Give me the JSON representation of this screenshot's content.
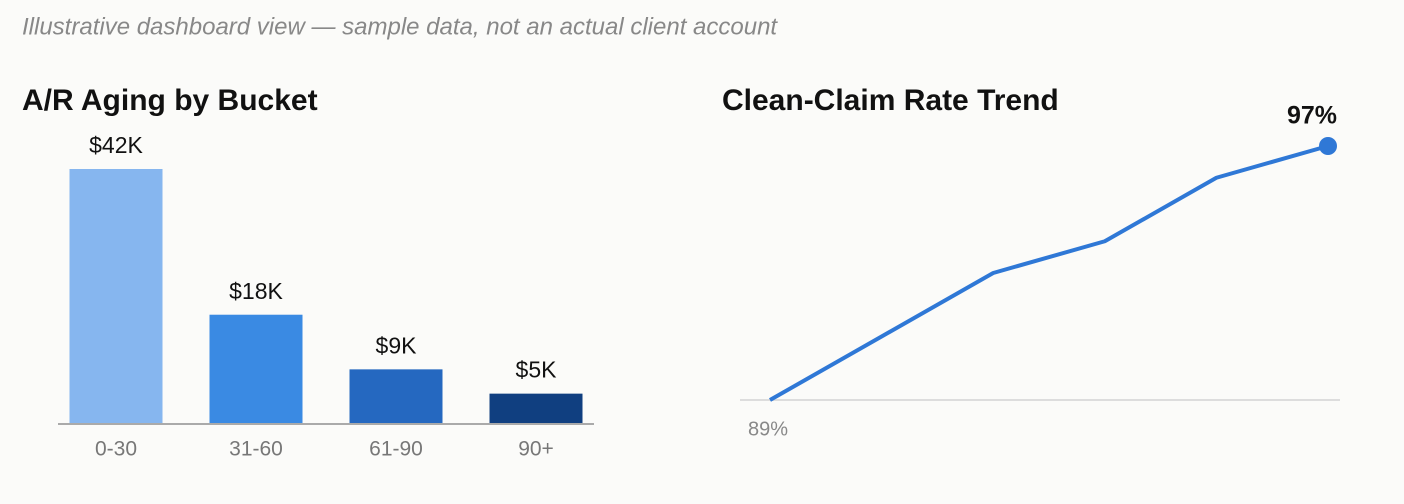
{
  "note": "Illustrative dashboard view — sample data, not an actual client account",
  "chart_data": [
    {
      "type": "bar",
      "title": "A/R Aging by Bucket",
      "categories": [
        "0-30",
        "31-60",
        "61-90",
        "90+"
      ],
      "values": [
        42000,
        18000,
        9000,
        5000
      ],
      "value_labels": [
        "$42K",
        "$18K",
        "$9K",
        "$5K"
      ],
      "colors": [
        "#86b6ef",
        "#3a8ae3",
        "#2568c0",
        "#103f80"
      ],
      "ylim": [
        0,
        42000
      ]
    },
    {
      "type": "line",
      "title": "Clean-Claim Rate Trend",
      "categories": [
        null,
        null,
        null,
        null,
        null,
        null
      ],
      "values": [
        89,
        91,
        93,
        94,
        96,
        97
      ],
      "value_labels": [
        "89%",
        null,
        null,
        null,
        null,
        "97%"
      ],
      "color": "#2f78d6",
      "ylim": [
        89,
        97
      ]
    }
  ]
}
